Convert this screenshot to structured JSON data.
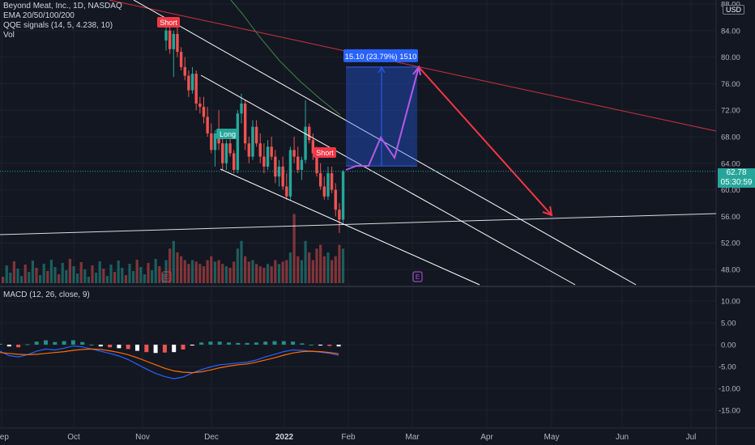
{
  "legend": {
    "title": "Beyond Meat, Inc., 1D, NASDAQ",
    "ema": "EMA 20/50/100/200",
    "qqe": "QQE signals (14, 5, 4.238, 10)",
    "vol": "Vol",
    "macd": "MACD (12, 26, close, 9)"
  },
  "currency": "USD",
  "last_price": {
    "value": "62.78",
    "countdown": "05:30:59"
  },
  "measure_label": "15.10 (23.79%) 1510",
  "signals": [
    "Short",
    "Long",
    "Short"
  ],
  "earnings_marker": "E",
  "colors": {
    "up": "#26a69a",
    "down": "#ef5350",
    "macd": "#2962ff",
    "signal": "#ff6d00",
    "measure": "#2962ff",
    "projection": "#b45ae6",
    "forecast": "#f23645"
  },
  "chart_data": [
    {
      "type": "candlestick",
      "title": "Beyond Meat, Inc., 1D, NASDAQ",
      "x_tick_labels": [
        "Sep",
        "Oct",
        "Nov",
        "Dec",
        "2022",
        "Feb",
        "Mar",
        "Apr",
        "May",
        "Jun",
        "Jul"
      ],
      "y_tick_labels": [
        "88.00",
        "84.00",
        "80.00",
        "76.00",
        "72.00",
        "68.00",
        "64.00",
        "60.00",
        "56.00",
        "52.00",
        "48.00"
      ],
      "ylim": [
        45,
        88.5
      ],
      "candles_ohlc": [
        [
          82.5,
          84.8,
          81.0,
          84.0
        ],
        [
          84.0,
          85.5,
          80.5,
          81.2
        ],
        [
          81.2,
          84.0,
          77.0,
          83.5
        ],
        [
          83.5,
          85.0,
          80.0,
          80.8
        ],
        [
          80.8,
          81.5,
          78.0,
          78.5
        ],
        [
          78.5,
          80.0,
          76.5,
          77.2
        ],
        [
          77.2,
          78.0,
          74.0,
          75.0
        ],
        [
          75.0,
          78.5,
          74.5,
          77.5
        ],
        [
          77.5,
          78.0,
          72.0,
          73.0
        ],
        [
          73.0,
          74.0,
          71.5,
          72.5
        ],
        [
          72.5,
          74.0,
          70.0,
          71.0
        ],
        [
          71.0,
          72.5,
          68.0,
          68.5
        ],
        [
          68.5,
          70.0,
          65.5,
          66.0
        ],
        [
          66.0,
          69.0,
          63.5,
          68.5
        ],
        [
          68.5,
          72.0,
          66.0,
          67.0
        ],
        [
          67.0,
          68.0,
          63.0,
          64.0
        ],
        [
          64.0,
          67.5,
          63.0,
          67.0
        ],
        [
          67.0,
          68.5,
          65.0,
          65.5
        ],
        [
          65.5,
          66.0,
          62.5,
          63.0
        ],
        [
          63.0,
          72.0,
          62.5,
          71.5
        ],
        [
          71.5,
          74.5,
          70.0,
          73.0
        ],
        [
          73.0,
          73.5,
          66.0,
          67.0
        ],
        [
          67.0,
          68.0,
          64.0,
          65.0
        ],
        [
          65.0,
          70.5,
          64.5,
          69.5
        ],
        [
          69.5,
          70.5,
          66.5,
          67.0
        ],
        [
          67.0,
          68.5,
          64.0,
          65.0
        ],
        [
          65.0,
          67.0,
          62.5,
          63.5
        ],
        [
          63.5,
          67.5,
          63.0,
          66.5
        ],
        [
          66.5,
          68.0,
          64.5,
          65.0
        ],
        [
          65.0,
          66.0,
          61.0,
          62.0
        ],
        [
          62.0,
          64.5,
          60.5,
          63.5
        ],
        [
          63.5,
          65.0,
          60.0,
          60.5
        ],
        [
          60.5,
          62.5,
          58.5,
          59.0
        ],
        [
          59.0,
          66.5,
          58.5,
          66.0
        ],
        [
          66.0,
          68.0,
          64.0,
          65.0
        ],
        [
          65.0,
          66.5,
          62.5,
          63.0
        ],
        [
          63.0,
          65.0,
          61.5,
          64.5
        ],
        [
          64.5,
          73.5,
          64.0,
          69.5
        ],
        [
          69.5,
          70.0,
          67.0,
          67.5
        ],
        [
          67.5,
          68.5,
          64.5,
          65.5
        ],
        [
          65.5,
          66.5,
          62.0,
          62.5
        ],
        [
          62.5,
          64.0,
          60.0,
          60.5
        ],
        [
          60.5,
          62.0,
          58.5,
          59.0
        ],
        [
          59.0,
          63.5,
          58.5,
          62.5
        ],
        [
          62.5,
          63.5,
          59.5,
          60.0
        ],
        [
          60.0,
          61.0,
          56.0,
          57.0
        ],
        [
          57.0,
          58.0,
          53.5,
          55.5
        ],
        [
          55.5,
          63.0,
          55.0,
          62.78
        ]
      ],
      "volume_relative": [
        0.3,
        0.45,
        0.55,
        0.4,
        0.35,
        0.3,
        0.25,
        0.3,
        0.28,
        0.25,
        0.22,
        0.3,
        0.35,
        0.28,
        0.3,
        0.25,
        0.22,
        0.2,
        0.28,
        0.45,
        0.55,
        0.35,
        0.28,
        0.3,
        0.25,
        0.22,
        0.2,
        0.25,
        0.22,
        0.3,
        0.25,
        0.28,
        0.3,
        0.4,
        0.9,
        0.35,
        0.3,
        0.55,
        0.4,
        0.3,
        0.45,
        0.5,
        0.35,
        0.4,
        0.3,
        0.35,
        0.5,
        0.45
      ],
      "last_price": 62.78
    },
    {
      "type": "line",
      "title": "MACD (12, 26, close, 9)",
      "y_tick_labels": [
        "10.00",
        "5.00",
        "0.00",
        "-5.00",
        "-10.00",
        "-15.00"
      ],
      "ylim": [
        -17,
        11.5
      ],
      "series": [
        {
          "values": [
            -1.5,
            -2.5,
            -2.8,
            -2.3,
            -1.5,
            -1.0,
            -1.2,
            -0.8,
            -0.3,
            -0.5,
            -1.0,
            -1.5,
            -2.0,
            -2.6,
            -3.4,
            -4.5,
            -5.6,
            -6.6,
            -7.3,
            -7.8,
            -7.4,
            -6.5,
            -5.7,
            -5.1,
            -4.6,
            -4.4,
            -4.2,
            -4.0,
            -3.5,
            -2.8,
            -2.2,
            -1.6,
            -1.2,
            -1.3,
            -1.5,
            -1.7,
            -2.0,
            -2.4
          ]
        },
        {
          "values": [
            -1.8,
            -2.0,
            -2.2,
            -2.3,
            -2.2,
            -2.0,
            -1.8,
            -1.6,
            -1.3,
            -1.1,
            -1.0,
            -1.1,
            -1.4,
            -1.8,
            -2.3,
            -3.0,
            -3.8,
            -4.6,
            -5.4,
            -6.0,
            -6.3,
            -6.4,
            -6.2,
            -5.8,
            -5.3,
            -4.9,
            -4.6,
            -4.4,
            -4.0,
            -3.5,
            -3.0,
            -2.4,
            -1.9,
            -1.6,
            -1.5,
            -1.6,
            -1.8,
            -2.1
          ]
        }
      ],
      "histogram": [
        0.2,
        -0.4,
        -0.6,
        0.1,
        0.7,
        1.0,
        0.6,
        0.8,
        1.0,
        0.6,
        0.0,
        -0.4,
        -0.6,
        -0.8,
        -1.0,
        -1.4,
        -1.7,
        -1.9,
        -1.8,
        -1.7,
        -1.1,
        -0.2,
        0.5,
        0.7,
        0.7,
        0.5,
        0.4,
        0.4,
        0.5,
        0.7,
        0.8,
        0.8,
        0.7,
        0.3,
        0.0,
        -0.2,
        -0.3,
        -0.4
      ],
      "x_tick_labels": [
        "Sep",
        "Oct",
        "Nov",
        "Dec",
        "2022",
        "Feb",
        "Mar",
        "Apr",
        "May",
        "Jun",
        "Jul"
      ]
    }
  ]
}
